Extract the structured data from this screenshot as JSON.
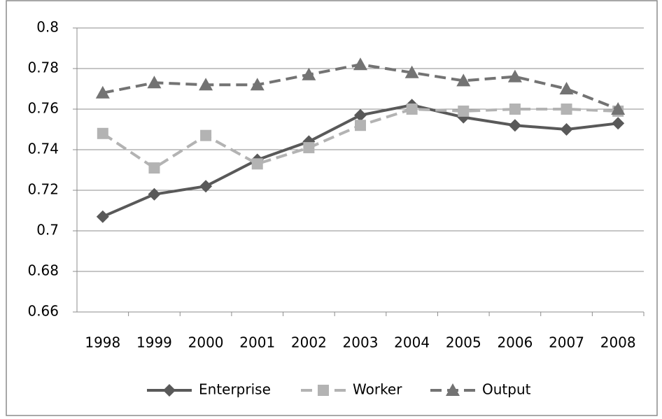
{
  "chart_data": {
    "type": "line",
    "categories": [
      "1998",
      "1999",
      "2000",
      "2001",
      "2002",
      "2003",
      "2004",
      "2005",
      "2006",
      "2007",
      "2008"
    ],
    "series": [
      {
        "name": "Enterprise",
        "color": "#595959",
        "dash": "solid",
        "marker": "diamond",
        "values": [
          0.707,
          0.718,
          0.722,
          0.735,
          0.744,
          0.757,
          0.762,
          0.756,
          0.752,
          0.75,
          0.753
        ]
      },
      {
        "name": "Worker",
        "color": "#b3b3b3",
        "dash": "dashed",
        "marker": "square",
        "values": [
          0.748,
          0.731,
          0.747,
          0.733,
          0.741,
          0.752,
          0.76,
          0.759,
          0.76,
          0.76,
          0.759
        ]
      },
      {
        "name": "Output",
        "color": "#737373",
        "dash": "dashed",
        "marker": "triangle",
        "values": [
          0.768,
          0.773,
          0.772,
          0.772,
          0.777,
          0.782,
          0.778,
          0.774,
          0.776,
          0.77,
          0.76
        ]
      }
    ],
    "ylim": [
      0.66,
      0.8
    ],
    "yticks": [
      0.66,
      0.68,
      0.7,
      0.72,
      0.74,
      0.76,
      0.78,
      0.8
    ],
    "grid": true,
    "legend": "bottom"
  }
}
